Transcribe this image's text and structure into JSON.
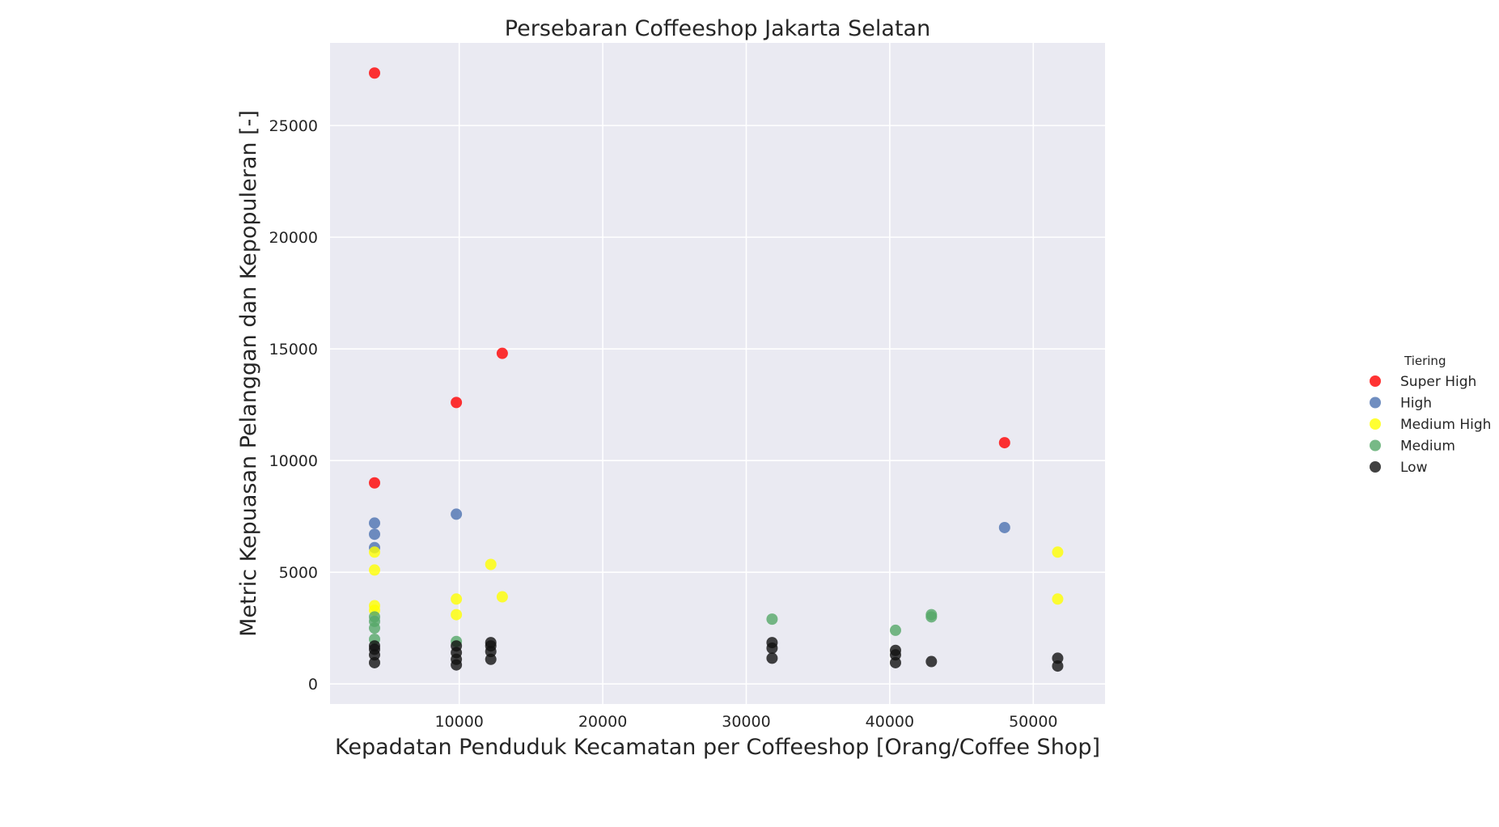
{
  "chart_data": {
    "type": "scatter",
    "title": "Persebaran Coffeeshop Jakarta Selatan",
    "xlabel": "Kepadatan Penduduk Kecamatan per Coffeeshop [Orang/Coffee Shop]",
    "ylabel": "Metric Kepuasan Pelanggan dan Kepopuleran [-]",
    "xlim": [
      1000,
      55000
    ],
    "ylim": [
      -900,
      28700
    ],
    "xticks": [
      10000,
      20000,
      30000,
      40000,
      50000
    ],
    "yticks": [
      0,
      5000,
      10000,
      15000,
      20000,
      25000
    ],
    "grid": true,
    "legend_placement": "outside-right",
    "legend_title": "Tiering",
    "series": [
      {
        "name": "Super High",
        "color": "#ff0000",
        "points": [
          [
            4100,
            27350
          ],
          [
            4100,
            9000
          ],
          [
            9800,
            12600
          ],
          [
            13000,
            14800
          ],
          [
            48000,
            10800
          ]
        ]
      },
      {
        "name": "High",
        "color": "#4c72b0",
        "points": [
          [
            4100,
            7200
          ],
          [
            4100,
            6700
          ],
          [
            4100,
            6100
          ],
          [
            9800,
            7600
          ],
          [
            48000,
            7000
          ]
        ]
      },
      {
        "name": "Medium High",
        "color": "#ffff00",
        "points": [
          [
            4100,
            5900
          ],
          [
            4100,
            5100
          ],
          [
            4100,
            3500
          ],
          [
            4100,
            3300
          ],
          [
            9800,
            3800
          ],
          [
            9800,
            3100
          ],
          [
            12200,
            5350
          ],
          [
            13000,
            3900
          ],
          [
            51700,
            5900
          ],
          [
            51700,
            3800
          ]
        ]
      },
      {
        "name": "Medium",
        "color": "#55a868",
        "points": [
          [
            4100,
            3000
          ],
          [
            4100,
            2800
          ],
          [
            4100,
            2500
          ],
          [
            4100,
            2000
          ],
          [
            9800,
            1900
          ],
          [
            31800,
            2900
          ],
          [
            40400,
            2400
          ],
          [
            42900,
            3100
          ],
          [
            42900,
            3000
          ]
        ]
      },
      {
        "name": "Low",
        "color": "#111111",
        "points": [
          [
            4100,
            1700
          ],
          [
            4100,
            1550
          ],
          [
            4100,
            1300
          ],
          [
            4100,
            950
          ],
          [
            9800,
            1700
          ],
          [
            9800,
            1400
          ],
          [
            9800,
            1100
          ],
          [
            9800,
            850
          ],
          [
            12200,
            1850
          ],
          [
            12200,
            1700
          ],
          [
            12200,
            1450
          ],
          [
            12200,
            1100
          ],
          [
            31800,
            1850
          ],
          [
            31800,
            1600
          ],
          [
            31800,
            1150
          ],
          [
            40400,
            1500
          ],
          [
            40400,
            1300
          ],
          [
            40400,
            950
          ],
          [
            42900,
            1000
          ],
          [
            51700,
            1150
          ],
          [
            51700,
            800
          ]
        ]
      }
    ]
  }
}
